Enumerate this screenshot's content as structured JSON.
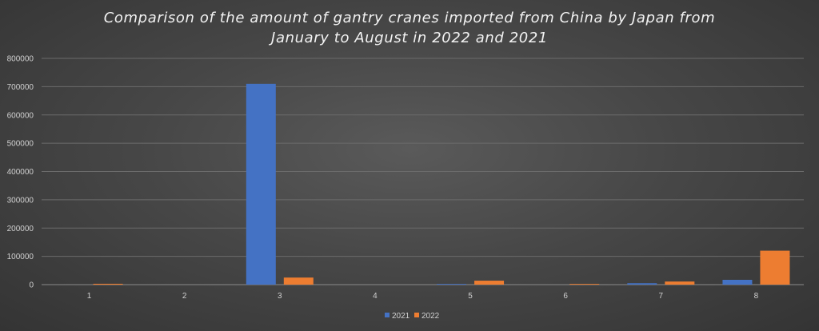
{
  "chart_data": {
    "type": "bar",
    "title": "Comparison of the amount of gantry cranes imported from China by Japan from January to August in 2022 and 2021",
    "categories": [
      "1",
      "2",
      "3",
      "4",
      "5",
      "6",
      "7",
      "8"
    ],
    "series": [
      {
        "name": "2021",
        "color": "#4472c4",
        "values": [
          0,
          0,
          710000,
          0,
          2500,
          0,
          5000,
          17000
        ]
      },
      {
        "name": "2022",
        "color": "#ed7d31",
        "values": [
          3000,
          0,
          25000,
          0,
          14000,
          2500,
          11000,
          120000
        ]
      }
    ],
    "ylim": [
      0,
      800000
    ],
    "yticks": [
      0,
      100000,
      200000,
      300000,
      400000,
      500000,
      600000,
      700000,
      800000
    ],
    "ytick_labels": [
      "0",
      "100000",
      "200000",
      "300000",
      "400000",
      "500000",
      "600000",
      "700000",
      "800000"
    ],
    "grid": true,
    "legend_position": "bottom-center",
    "colors": {
      "gridline": "#6b6b6b",
      "axis": "#8a8a8a"
    }
  }
}
